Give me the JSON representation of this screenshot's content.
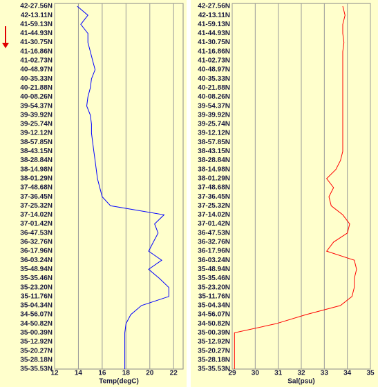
{
  "chart_data": [
    {
      "type": "line",
      "orientation": "horizontal",
      "x_label": "Temp(degC)",
      "color": "#0000ff",
      "grid": true,
      "xlim": [
        12,
        22.8
      ],
      "xticks": [
        12,
        14,
        16,
        18,
        20,
        22
      ],
      "categories": [
        "42-27.56N",
        "42-13.11N",
        "41-59.13N",
        "41-44.93N",
        "41-30.75N",
        "41-16.86N",
        "41-02.73N",
        "40-48.97N",
        "40-35.33N",
        "40-21.88N",
        "40-08.26N",
        "39-54.37N",
        "39-39.92N",
        "39-25.74N",
        "39-12.12N",
        "38-57.85N",
        "38-43.15N",
        "38-28.84N",
        "38-14.98N",
        "38-01.29N",
        "37-48.68N",
        "37-36.45N",
        "37-25.32N",
        "37-14.02N",
        "37-01.42N",
        "36-47.53N",
        "36-32.76N",
        "36-17.96N",
        "36-03.24N",
        "35-48.94N",
        "35-35.46N",
        "35-23.20N",
        "35-11.76N",
        "35-04.34N",
        "34-56.07N",
        "34-50.82N",
        "35-00.39N",
        "35-12.92N",
        "35-20.27N",
        "35-28.18N",
        "35-35.53N"
      ],
      "values": [
        13.9,
        14.8,
        14.2,
        14.8,
        14.8,
        15.0,
        15.2,
        15.4,
        15.1,
        15.0,
        14.8,
        14.7,
        15.0,
        15.1,
        15.1,
        15.2,
        15.3,
        15.4,
        15.5,
        15.6,
        15.8,
        16.0,
        16.7,
        21.2,
        20.4,
        20.7,
        20.3,
        19.9,
        21.0,
        19.9,
        20.8,
        21.6,
        21.6,
        19.3,
        18.4,
        18.0,
        17.9,
        17.9,
        17.9,
        17.9,
        17.9
      ]
    },
    {
      "type": "line",
      "orientation": "horizontal",
      "x_label": "Sal(psu)",
      "color": "#ff0000",
      "grid": true,
      "xlim": [
        29,
        35
      ],
      "xticks": [
        29,
        30,
        31,
        32,
        33,
        34,
        35
      ],
      "categories": [
        "42-27.56N",
        "42-13.11N",
        "41-59.13N",
        "41-44.93N",
        "41-30.75N",
        "41-16.86N",
        "41-02.73N",
        "40-48.97N",
        "40-35.33N",
        "40-21.88N",
        "40-08.26N",
        "39-54.37N",
        "39-39.92N",
        "39-25.74N",
        "39-12.12N",
        "38-57.85N",
        "38-43.15N",
        "38-28.84N",
        "38-14.98N",
        "38-01.29N",
        "37-48.68N",
        "37-36.45N",
        "37-25.32N",
        "37-14.02N",
        "37-01.42N",
        "36-47.53N",
        "36-32.76N",
        "36-17.96N",
        "36-03.24N",
        "35-48.94N",
        "35-35.46N",
        "35-23.20N",
        "35-11.76N",
        "35-04.34N",
        "34-56.07N",
        "34-50.82N",
        "35-00.39N",
        "35-12.92N",
        "35-20.27N",
        "35-28.18N",
        "35-35.53N"
      ],
      "values": [
        33.8,
        33.9,
        33.8,
        33.8,
        33.85,
        33.8,
        33.8,
        33.8,
        33.8,
        33.8,
        33.8,
        33.8,
        33.8,
        33.8,
        33.8,
        33.8,
        33.8,
        33.7,
        33.5,
        33.1,
        33.4,
        33.2,
        33.3,
        33.8,
        34.1,
        34.0,
        33.4,
        33.1,
        34.3,
        34.4,
        34.3,
        34.3,
        34.2,
        33.7,
        32.2,
        30.9,
        29.1,
        29.1,
        29.1,
        29.1,
        29.1
      ]
    }
  ]
}
